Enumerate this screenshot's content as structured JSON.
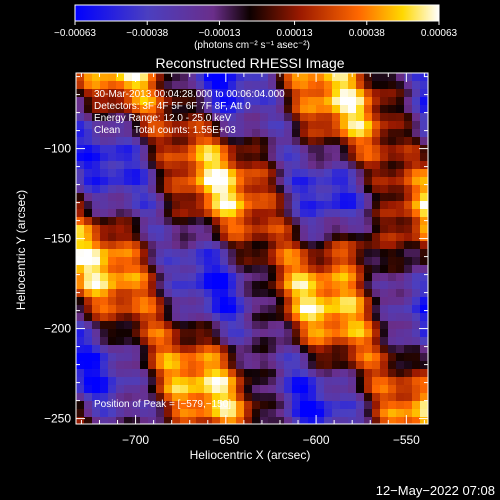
{
  "chart_data": {
    "type": "heatmap",
    "title": "Reconstructed RHESSI Image",
    "xlabel": "Heliocentric X (arcsec)",
    "ylabel": "Heliocentric Y (arcsec)",
    "xlim": [
      -733,
      -538
    ],
    "ylim": [
      -253,
      -58
    ],
    "x_ticks": [
      -700,
      -650,
      -600,
      -550
    ],
    "x_tick_labels": [
      "−700",
      "−650",
      "−600",
      "−550"
    ],
    "y_ticks": [
      -250,
      -200,
      -150,
      -100
    ],
    "y_tick_labels": [
      "−250",
      "−200",
      "−150",
      "−100"
    ],
    "colorbar": {
      "min": -0.00063,
      "max": 0.00063,
      "tick_values": [
        -0.00063,
        -0.00038,
        -0.00013,
        0.00013,
        0.00038,
        0.00063
      ],
      "tick_labels": [
        "−0.00063",
        "−0.00038",
        "−0.00013",
        "0.00013",
        "0.00038",
        "0.00063"
      ],
      "unit_label": "(photons cm⁻² s⁻¹ asec⁻²)",
      "colors": [
        "#0000ff",
        "#4b3fc0",
        "#6a2e8a",
        "#0d0000",
        "#9c1a00",
        "#ff6800",
        "#ffd800",
        "#ffffff"
      ]
    },
    "grid": false,
    "peak": [
      -579,
      -150
    ]
  },
  "annotations": {
    "time_range": "30-Mar-2013 00:04:28.000 to 00:06:04.000",
    "detectors": "Detectors: 3F 4F 5F 6F 7F 8F, Att 0",
    "energy_range": "Energy Range: 12.0 - 25.0 keV",
    "clean_counts": "Clean     Total counts: 1.55E+03",
    "peak_label": "Position of Peak = [−579,−150]"
  },
  "footer": {
    "timestamp": "12−May−2022 07:08"
  }
}
